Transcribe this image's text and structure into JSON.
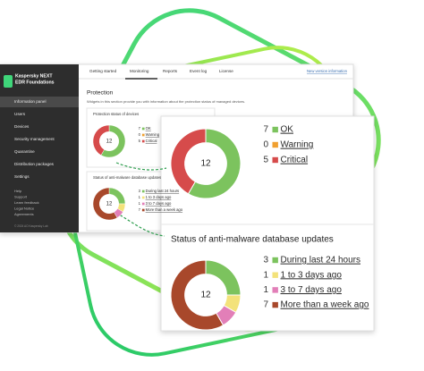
{
  "sidebar": {
    "brand": [
      "Kaspersky NEXT",
      "EDR Foundations"
    ],
    "menu": [
      "Information panel",
      "Users",
      "Devices",
      "Security management",
      "Quarantine",
      "Distribution packages",
      "Settings"
    ],
    "footer_links": [
      "Help",
      "Support",
      "Learn feedback",
      "Legal Notice",
      "Agreements"
    ],
    "copyright": "© 2024 AO Kaspersky Lab"
  },
  "tabs": [
    "Getting started",
    "Monitoring",
    "Reports",
    "Event log",
    "License"
  ],
  "top_link": "New version information",
  "section_title": "Protection",
  "section_description": "Widgets in this section provide you with information about the protection status of managed devices.",
  "widgets": [
    {
      "title": "Protection status of devices",
      "total": 12,
      "items": [
        {
          "label": "OK",
          "value": 7,
          "color": "#7cc35e"
        },
        {
          "label": "Warning",
          "value": 0,
          "color": "#f0a030"
        },
        {
          "label": "Critical",
          "value": 5,
          "color": "#d64b4b"
        }
      ]
    },
    {
      "title": "Status of anti-malware database updates",
      "total": 12,
      "items": [
        {
          "label": "During last 24 hours",
          "value": 3,
          "color": "#7cc35e"
        },
        {
          "label": "1 to 3 days ago",
          "value": 1,
          "color": "#f3e27a"
        },
        {
          "label": "3 to 7 days ago",
          "value": 1,
          "color": "#e27fb8"
        },
        {
          "label": "More than a week ago",
          "value": 7,
          "color": "#a8482b"
        }
      ]
    }
  ]
}
